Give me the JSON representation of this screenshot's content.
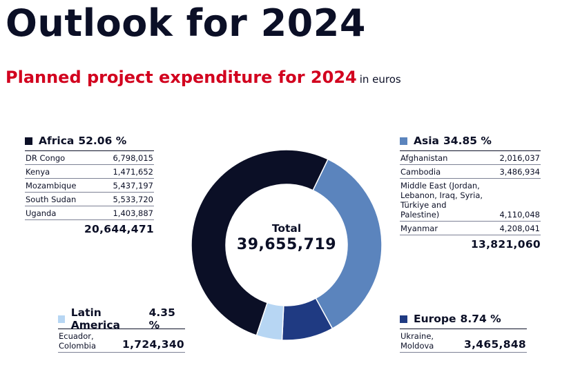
{
  "title": "Outlook for 2024",
  "subtitle": "Planned project expenditure for 2024",
  "unit": "in euros",
  "total": {
    "label": "Total",
    "value": "39,655,719"
  },
  "colors": {
    "africa": "#0b0f26",
    "asia": "#5b84bd",
    "europe": "#1f3a82",
    "latam": "#b7d6f3",
    "accent": "#d2001e"
  },
  "regions": {
    "africa": {
      "name": "Africa",
      "percent": "52.06 %",
      "rows": [
        {
          "country": "DR Congo",
          "value": "6,798,015"
        },
        {
          "country": "Kenya",
          "value": "1,471,652"
        },
        {
          "country": "Mozambique",
          "value": "5,437,197"
        },
        {
          "country": "South Sudan",
          "value": "5,533,720"
        },
        {
          "country": "Uganda",
          "value": "1,403,887"
        }
      ],
      "total": "20,644,471"
    },
    "asia": {
      "name": "Asia",
      "percent": "34.85 %",
      "rows": [
        {
          "country": "Afghanistan",
          "value": "2,016,037"
        },
        {
          "country": "Cambodia",
          "value": "3,486,934"
        },
        {
          "country": "Middle East (Jordan, Lebanon, Iraq, Syria, Türkiye and Palestine)",
          "value": "4,110,048"
        },
        {
          "country": "Myanmar",
          "value": "4,208,041"
        }
      ],
      "total": "13,821,060"
    },
    "latam": {
      "name": "Latin America",
      "percent": "4.35 %",
      "countries": "Ecuador, Colombia",
      "value": "1,724,340"
    },
    "europe": {
      "name": "Europe",
      "percent": "8.74 %",
      "countries": "Ukraine, Moldova",
      "value": "3,465,848"
    }
  },
  "chart_data": {
    "type": "pie",
    "title": "Planned project expenditure for 2024",
    "unit": "euros",
    "categories": [
      "Africa",
      "Asia",
      "Europe",
      "Latin America"
    ],
    "values": [
      20644471,
      13821060,
      3465848,
      1724340
    ],
    "percentages": [
      52.06,
      34.85,
      8.74,
      4.35
    ],
    "total": 39655719,
    "donut": true
  }
}
